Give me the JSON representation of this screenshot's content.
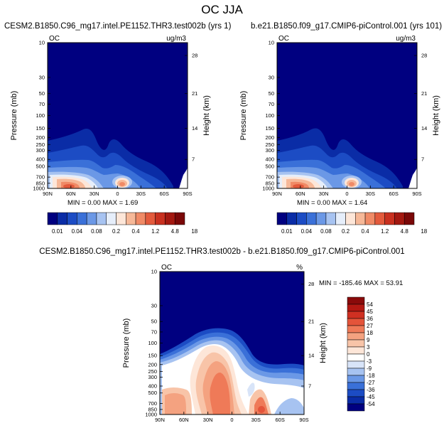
{
  "title": "OC JJA",
  "colors": {
    "abs_scale": [
      "#000080",
      "#0a2ca6",
      "#1c4cc4",
      "#3a70d8",
      "#6b98e6",
      "#a7c3f1",
      "#e6eefa",
      "#fde6d8",
      "#f6b898",
      "#f08a66",
      "#e35a3c",
      "#c8301f",
      "#a31810",
      "#7a0808"
    ],
    "diff_scale": [
      "#000080",
      "#0a2ca6",
      "#1c4cc4",
      "#3a70d8",
      "#6b98e6",
      "#a7c3f1",
      "#d8e4f8",
      "#ffffff",
      "#fde6d8",
      "#f8c4a8",
      "#f4a280",
      "#ef7a58",
      "#e4543a",
      "#cf3022",
      "#b31812",
      "#8a0a0a"
    ]
  },
  "chart_data": [
    {
      "type": "heatmap",
      "title": "CESM2.B1850.C96_mg17.intel.PE1152.THR3.test002b (yrs 1)",
      "left_label": "OC",
      "right_label": "ug/m3",
      "xlabel": "",
      "ylabel": "Pressure (mb)",
      "ylabel_right": "Height (km)",
      "xticks": [
        "90N",
        "60N",
        "30N",
        "0",
        "30S",
        "60S",
        "90S"
      ],
      "yticks": [
        "10",
        "30",
        "50",
        "70",
        "100",
        "150",
        "200",
        "250",
        "300",
        "400",
        "500",
        "700",
        "850",
        "1000"
      ],
      "yticks_right": [
        "28",
        "21",
        "14",
        "7"
      ],
      "stats": "MIN =   0.00  MAX =   1.69",
      "colorbar_labels": [
        "0.01",
        "0.04",
        "0.08",
        "0.2",
        "0.4",
        "1.2",
        "4.8",
        "18"
      ]
    },
    {
      "type": "heatmap",
      "title": "b.e21.B1850.f09_g17.CMIP6-piControl.001 (yrs 101)",
      "left_label": "OC",
      "right_label": "ug/m3",
      "xlabel": "",
      "ylabel": "Pressure (mb)",
      "ylabel_right": "Height (km)",
      "xticks": [
        "90N",
        "60N",
        "30N",
        "0",
        "30S",
        "60S",
        "90S"
      ],
      "yticks": [
        "10",
        "30",
        "50",
        "70",
        "100",
        "150",
        "200",
        "250",
        "300",
        "400",
        "500",
        "700",
        "850",
        "1000"
      ],
      "yticks_right": [
        "28",
        "21",
        "14",
        "7"
      ],
      "stats": "MIN =   0.00  MAX =   1.64",
      "colorbar_labels": [
        "0.01",
        "0.04",
        "0.08",
        "0.2",
        "0.4",
        "1.2",
        "4.8",
        "18"
      ]
    },
    {
      "type": "heatmap",
      "title": "CESM2.B1850.C96_mg17.intel.PE1152.THR3.test002b - b.e21.B1850.f09_g17.CMIP6-piControl.001",
      "left_label": "OC",
      "right_label": "%",
      "xlabel": "",
      "ylabel": "Pressure (mb)",
      "ylabel_right": "Height (km)",
      "xticks": [
        "90N",
        "60N",
        "30N",
        "0",
        "30S",
        "60S",
        "90S"
      ],
      "yticks": [
        "10",
        "30",
        "50",
        "70",
        "100",
        "150",
        "200",
        "250",
        "300",
        "400",
        "500",
        "700",
        "850",
        "1000"
      ],
      "yticks_right": [
        "28",
        "21",
        "14",
        "7"
      ],
      "stats": "MIN = -185.46  MAX =  53.91",
      "colorbar_labels": [
        "54",
        "45",
        "36",
        "27",
        "18",
        "9",
        "3",
        "0",
        "-3",
        "-9",
        "-18",
        "-27",
        "-36",
        "-45",
        "-54"
      ]
    }
  ]
}
